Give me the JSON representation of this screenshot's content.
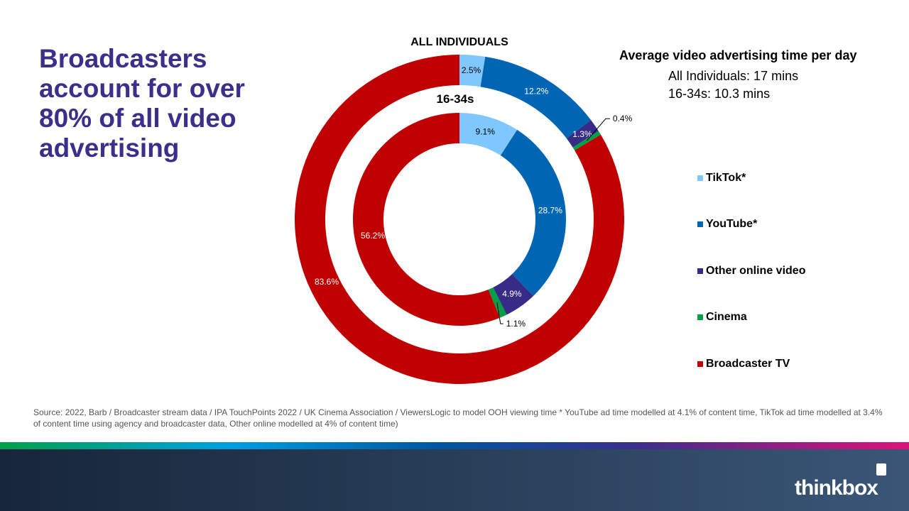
{
  "headline": "Broadcasters account for over 80% of all video advertising",
  "avg": {
    "title": "Average video advertising time per day",
    "line1": "All Individuals: 17 mins",
    "line2": "16-34s: 10.3 mins"
  },
  "chart_data": {
    "type": "donut",
    "categories": [
      "TikTok*",
      "YouTube*",
      "Other online video",
      "Cinema",
      "Broadcaster TV"
    ],
    "colors": [
      "#7fc8ff",
      "#0066b3",
      "#362c85",
      "#00a04a",
      "#c00000"
    ],
    "series": [
      {
        "name": "ALL INDIVIDUALS",
        "ring": "outer",
        "values": [
          2.5,
          12.2,
          1.3,
          0.4,
          83.6
        ]
      },
      {
        "name": "16-34s",
        "ring": "inner",
        "values": [
          9.1,
          28.7,
          4.9,
          1.1,
          56.2
        ]
      }
    ],
    "legend": "right"
  },
  "source": "Source: 2022, Barb / Broadcaster stream data / IPA TouchPoints 2022 / UK Cinema Association / ViewersLogic to model OOH viewing time * YouTube ad time modelled at 4.1% of content time, TikTok ad time modelled at 3.4% of content time using agency and broadcaster data, Other online modelled at 4% of content time)",
  "logo": "thinkbox"
}
